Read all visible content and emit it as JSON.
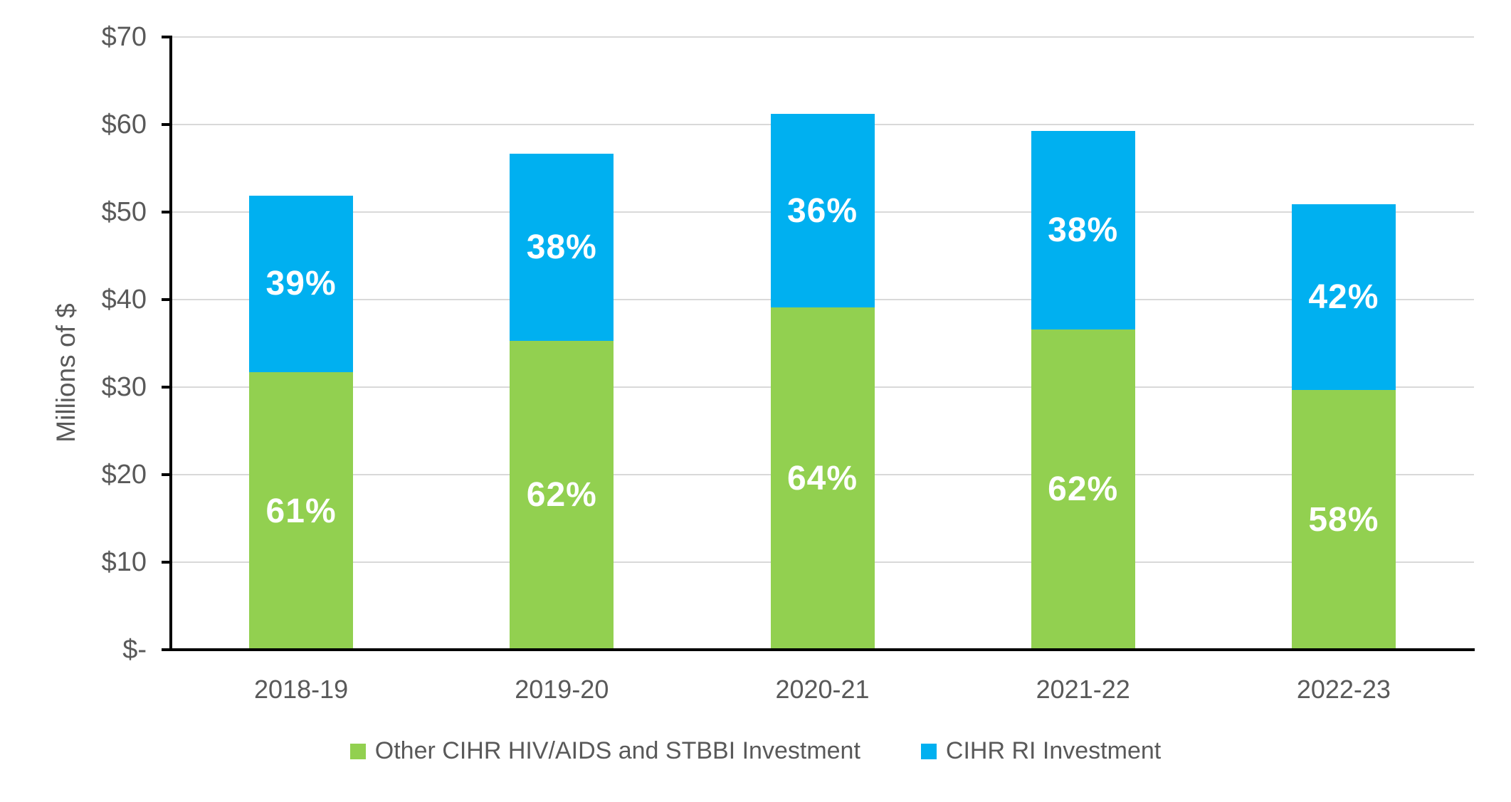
{
  "chart_data": {
    "type": "bar",
    "stacked": true,
    "title": "",
    "xlabel": "",
    "ylabel": "Millions of $",
    "categories": [
      "2018-19",
      "2019-20",
      "2020-21",
      "2021-22",
      "2022-23"
    ],
    "series": [
      {
        "name": "Other CIHR HIV/AIDS and STBBI Investment",
        "color": "#92d050",
        "values": [
          31.7,
          35.3,
          39.1,
          36.6,
          29.7
        ],
        "labels": [
          "61%",
          "62%",
          "64%",
          "62%",
          "58%"
        ]
      },
      {
        "name": "CIHR RI Investment",
        "color": "#00b0f0",
        "values": [
          20.2,
          21.4,
          22.1,
          22.7,
          21.2
        ],
        "labels": [
          "39%",
          "38%",
          "36%",
          "38%",
          "42%"
        ]
      }
    ],
    "totals": [
      51.9,
      56.7,
      61.2,
      59.3,
      50.9
    ],
    "ylim": [
      0,
      70
    ],
    "ytick_step": 10,
    "ytick_labels": [
      "$-",
      "$10",
      "$20",
      "$30",
      "$40",
      "$50",
      "$60",
      "$70"
    ],
    "grid": true,
    "legend_position": "bottom"
  },
  "y_axis": {
    "title": "Millions of $"
  },
  "legend": {
    "items": [
      {
        "label": "Other CIHR HIV/AIDS and STBBI Investment",
        "color": "#92d050"
      },
      {
        "label": "CIHR RI Investment",
        "color": "#00b0f0"
      }
    ]
  },
  "colors": {
    "series_green": "#92d050",
    "series_blue": "#00b0f0",
    "axis": "#000000",
    "gridline": "#d9d9d9",
    "axis_text": "#595959",
    "segment_label_text": "#ffffff",
    "background": "#ffffff"
  }
}
